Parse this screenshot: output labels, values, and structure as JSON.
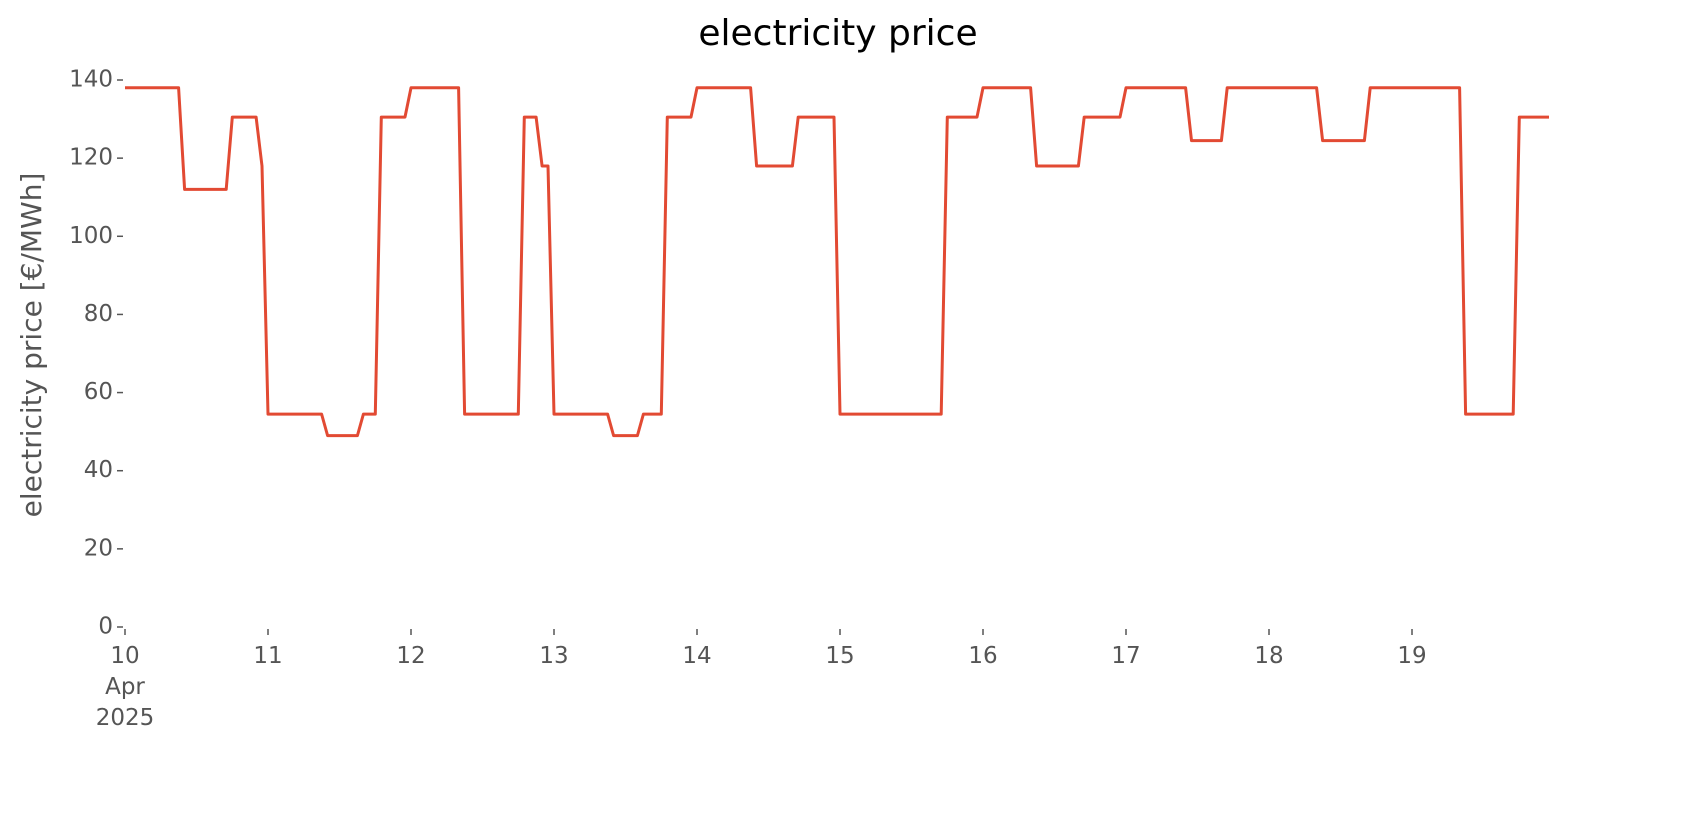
{
  "chart_data": {
    "type": "line",
    "title": "electricity price",
    "ylabel": "electricity price [€/MWh]",
    "series": [
      {
        "name": "electricity price",
        "color": "#e24a33",
        "x": [
          10.0,
          10.375,
          10.417,
          10.708,
          10.75,
          10.917,
          10.958,
          11.0,
          11.375,
          11.417,
          11.625,
          11.667,
          11.75,
          11.792,
          11.958,
          12.0,
          12.333,
          12.375,
          12.75,
          12.792,
          12.875,
          12.917,
          12.958,
          13.0,
          13.375,
          13.417,
          13.583,
          13.625,
          13.75,
          13.792,
          13.958,
          14.0,
          14.375,
          14.417,
          14.667,
          14.708,
          14.958,
          15.0,
          15.708,
          15.75,
          15.958,
          16.0,
          16.333,
          16.375,
          16.667,
          16.708,
          16.958,
          17.0,
          17.417,
          17.458,
          17.667,
          17.708,
          18.333,
          18.375,
          18.667,
          18.708,
          19.333,
          19.375,
          19.708,
          19.75,
          19.958
        ],
        "values": [
          138,
          138,
          112,
          112,
          130.5,
          130.5,
          118,
          54.5,
          54.5,
          49,
          49,
          54.5,
          54.5,
          130.5,
          130.5,
          138,
          138,
          54.5,
          54.5,
          130.5,
          130.5,
          118,
          118,
          54.5,
          54.5,
          49,
          49,
          54.5,
          54.5,
          130.5,
          130.5,
          138,
          138,
          118,
          118,
          130.5,
          130.5,
          54.5,
          54.5,
          130.5,
          130.5,
          138,
          138,
          118,
          118,
          130.5,
          130.5,
          138,
          138,
          124.5,
          124.5,
          138,
          138,
          124.5,
          124.5,
          138,
          138,
          54.5,
          54.5,
          130.5,
          130.5
        ]
      }
    ],
    "xlim": [
      10,
      19.958
    ],
    "xticks": [
      {
        "value": 10,
        "label": "10 Apr 2025"
      },
      11,
      12,
      13,
      14,
      15,
      16,
      17,
      18,
      19
    ],
    "ylim": [
      0,
      140
    ],
    "yticks": [
      0,
      20,
      40,
      60,
      80,
      100,
      120,
      140
    ],
    "grid": false
  }
}
